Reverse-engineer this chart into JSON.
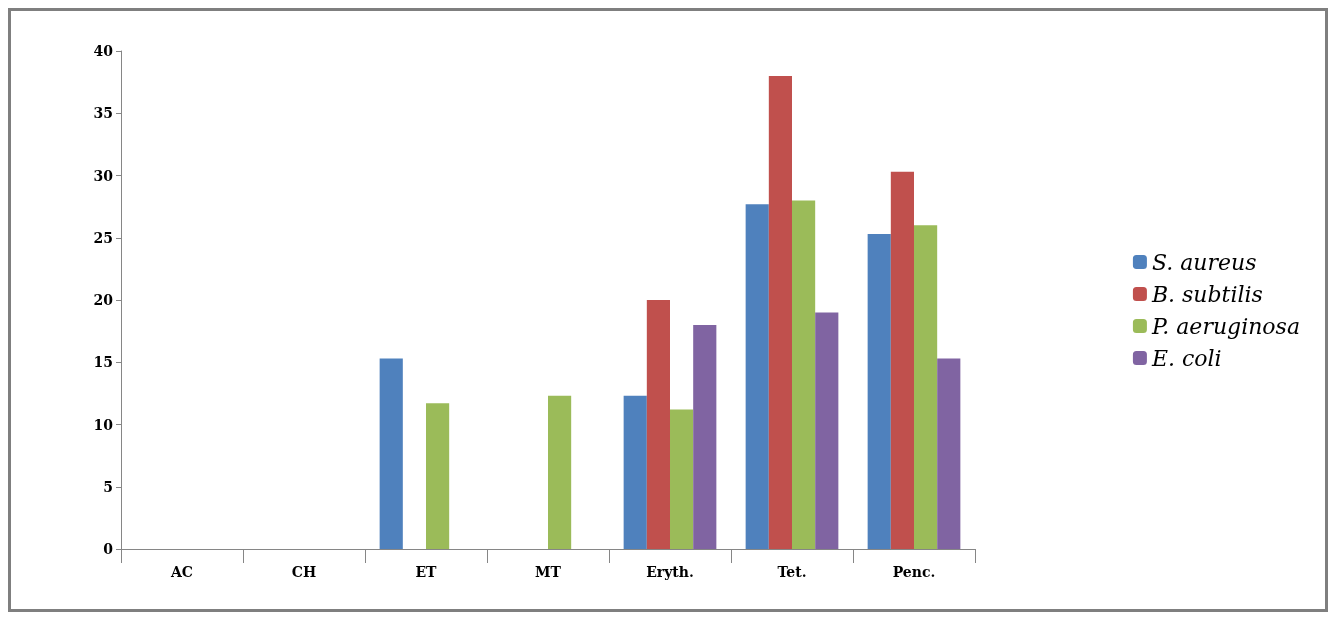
{
  "chart_data": {
    "type": "bar",
    "categories": [
      "AC",
      "CH",
      "ET",
      "MT",
      "Eryth.",
      "Tet.",
      "Penc."
    ],
    "series": [
      {
        "name": "S. aureus",
        "color": "#4f81bd",
        "values": [
          null,
          null,
          15.3,
          null,
          12.3,
          27.7,
          25.3
        ]
      },
      {
        "name": "B. subtilis",
        "color": "#c0504d",
        "values": [
          null,
          null,
          null,
          null,
          20,
          38,
          30.3
        ]
      },
      {
        "name": "P. aeruginosa",
        "color": "#9bbb59",
        "values": [
          null,
          null,
          11.7,
          12.3,
          11.2,
          28,
          26
        ]
      },
      {
        "name": "E. coli",
        "color": "#8064a2",
        "values": [
          null,
          null,
          null,
          null,
          18,
          19,
          15.3
        ]
      }
    ],
    "ylim": [
      0,
      40
    ],
    "yticks": [
      0,
      5,
      10,
      15,
      20,
      25,
      30,
      35,
      40
    ],
    "grid": false,
    "legend": "right"
  }
}
